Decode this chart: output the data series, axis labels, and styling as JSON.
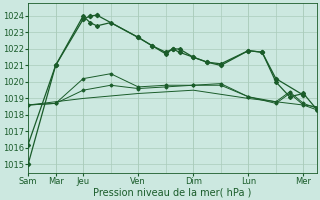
{
  "background_color": "#cce8e0",
  "grid_color": "#aaccbb",
  "line_color": "#1a5c2a",
  "xlabel": "Pression niveau de la mer( hPa )",
  "xlabel_fontsize": 7,
  "ylim": [
    1014.5,
    1024.8
  ],
  "yticks": [
    1015,
    1016,
    1017,
    1018,
    1019,
    1020,
    1021,
    1022,
    1023,
    1024
  ],
  "xtick_labels": [
    "Sam",
    "Mar",
    "Jeu",
    "Ven",
    "Dim",
    "Lun",
    "Mer"
  ],
  "xtick_positions": [
    0,
    2,
    4,
    8,
    12,
    16,
    20
  ],
  "xlim": [
    0,
    21
  ],
  "series1_x": [
    0,
    2,
    4,
    4.5,
    5,
    8,
    9,
    10,
    10.5,
    11,
    12,
    13,
    14,
    16,
    17,
    18,
    20
  ],
  "series1_y": [
    1015.0,
    1021.0,
    1023.8,
    1024.0,
    1024.05,
    1022.7,
    1022.2,
    1021.8,
    1022.0,
    1021.8,
    1021.5,
    1021.2,
    1021.0,
    1021.9,
    1021.8,
    1020.2,
    1019.2
  ],
  "series2_x": [
    0,
    2,
    4,
    4.5,
    5,
    6,
    8,
    9,
    10,
    10.5,
    11,
    12,
    13,
    14,
    16,
    17,
    18,
    19,
    20,
    21
  ],
  "series2_y": [
    1016.2,
    1021.0,
    1024.0,
    1023.6,
    1023.4,
    1023.6,
    1022.7,
    1022.2,
    1021.7,
    1022.0,
    1022.0,
    1021.5,
    1021.2,
    1021.1,
    1021.9,
    1021.8,
    1020.0,
    1019.1,
    1019.3,
    1018.3
  ],
  "series3_x": [
    0,
    2,
    4,
    6,
    8,
    10,
    12,
    14,
    16,
    18,
    19,
    20,
    21
  ],
  "series3_y": [
    1018.6,
    1018.7,
    1019.5,
    1019.8,
    1019.6,
    1019.7,
    1019.8,
    1019.8,
    1019.1,
    1018.7,
    1019.3,
    1018.6,
    1018.3
  ],
  "series4_x": [
    0,
    2,
    4,
    6,
    8,
    10,
    12,
    14,
    16,
    18,
    19,
    20,
    21
  ],
  "series4_y": [
    1018.6,
    1018.7,
    1020.2,
    1020.5,
    1019.7,
    1019.8,
    1019.8,
    1019.9,
    1019.1,
    1018.8,
    1019.4,
    1018.7,
    1018.4
  ],
  "series5_x": [
    0,
    4,
    8,
    12,
    16,
    21
  ],
  "series5_y": [
    1018.6,
    1019.0,
    1019.3,
    1019.5,
    1019.0,
    1018.5
  ],
  "day_vlines": [
    0,
    2,
    4,
    8,
    12,
    16,
    20
  ]
}
